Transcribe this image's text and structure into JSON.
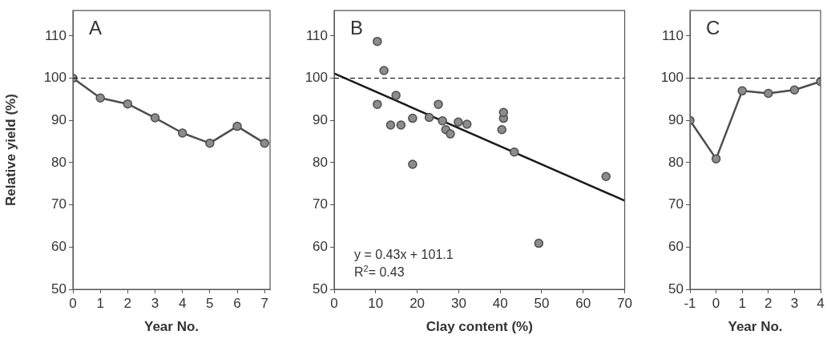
{
  "chart_data": [
    {
      "type": "line",
      "ylabel": "Relative yield (%)",
      "xlabel": "Year No.",
      "annotations": [
        "A"
      ],
      "x": [
        0,
        1,
        2,
        3,
        4,
        5,
        6,
        7
      ],
      "series": [
        {
          "color": "#4d4d4d",
          "values": [
            100,
            95.3,
            93.9,
            90.6,
            87,
            84.6,
            88.6,
            84.6
          ]
        }
      ],
      "xlim": [
        0,
        7.2
      ],
      "xticks": [
        0,
        1,
        2,
        3,
        4,
        5,
        6,
        7
      ],
      "ylim": [
        50,
        116
      ],
      "yticks": [
        50,
        60,
        70,
        80,
        90,
        100,
        110
      ],
      "ref_lines": [
        {
          "axis": "y",
          "value": 100,
          "color": "#000000",
          "line_style": "dashed"
        }
      ],
      "marker": "circle",
      "line_style": "solid",
      "grid": false,
      "legend": false
    },
    {
      "type": "scatter",
      "xlabel": "Clay content (%)",
      "annotations": [
        "B",
        "y = 0.43x + 101.1",
        "R$^{2}$= 0.43"
      ],
      "series": [
        {
          "color": "#4d4d4d",
          "x": [
            10.4,
            12,
            10.4,
            14.9,
            13.6,
            16.1,
            18.9,
            18.9,
            22.9,
            25.1,
            26.1,
            26.9,
            28,
            29.9,
            32,
            40.4,
            40.8,
            40.8,
            43.4,
            49.3,
            65.5
          ],
          "values": [
            108.7,
            101.8,
            93.8,
            95.9,
            88.9,
            88.9,
            90.5,
            79.6,
            90.7,
            93.8,
            89.9,
            87.8,
            86.8,
            89.6,
            89.1,
            87.8,
            90.5,
            91.9,
            82.5,
            60.9,
            76.7
          ]
        },
        {
          "type": "line",
          "color": "#1a1a1a",
          "marker": "none",
          "x": [
            0,
            70
          ],
          "values": [
            101.1,
            71
          ]
        }
      ],
      "xlim": [
        0,
        70
      ],
      "xticks": [
        0,
        10,
        20,
        30,
        40,
        50,
        60,
        70
      ],
      "ylim": [
        50,
        116
      ],
      "yticks": [
        50,
        60,
        70,
        80,
        90,
        100,
        110
      ],
      "ref_lines": [
        {
          "axis": "y",
          "value": 100,
          "color": "#000000",
          "line_style": "dashed"
        }
      ],
      "marker": "circle",
      "grid": false,
      "legend": false
    },
    {
      "type": "line",
      "xlabel": "Year No.",
      "annotations": [
        "C"
      ],
      "x": [
        -1,
        0,
        1,
        2,
        3,
        4
      ],
      "series": [
        {
          "color": "#4d4d4d",
          "values": [
            90,
            80.9,
            97,
            96.4,
            97.2,
            99.2
          ]
        }
      ],
      "xlim": [
        -1,
        4
      ],
      "xticks": [
        -1,
        0,
        1,
        2,
        3,
        4
      ],
      "ylim": [
        50,
        116
      ],
      "yticks": [
        50,
        60,
        70,
        80,
        90,
        100,
        110
      ],
      "ref_lines": [
        {
          "axis": "y",
          "value": 100,
          "color": "#000000",
          "line_style": "dashed"
        }
      ],
      "marker": "circle",
      "line_style": "solid",
      "grid": false,
      "legend": false
    }
  ]
}
